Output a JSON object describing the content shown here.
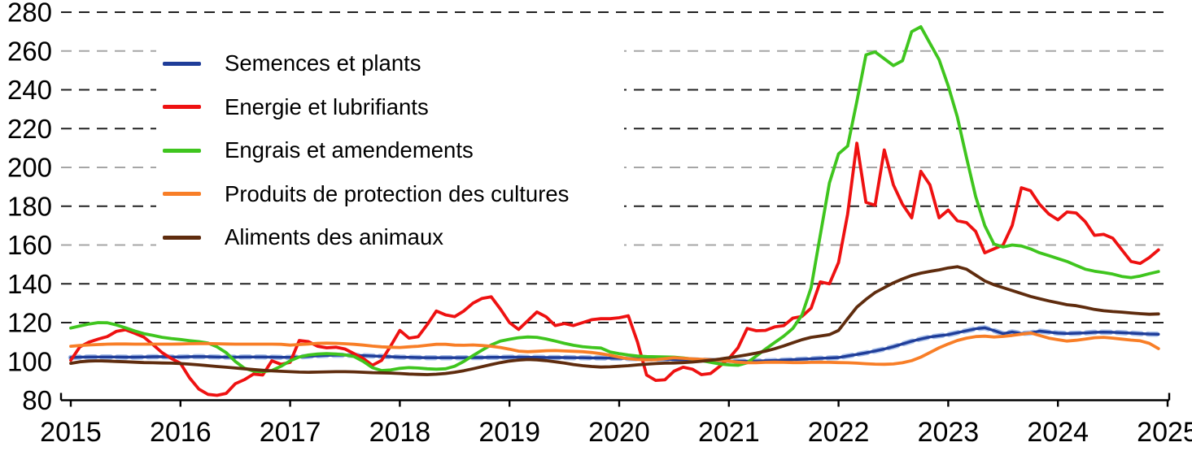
{
  "chart_data": {
    "type": "line",
    "title": "",
    "xlabel": "",
    "ylabel": "",
    "x_granularity": "monthly",
    "x_range": [
      "2015-01",
      "2024-12"
    ],
    "x_tick_labels": [
      "2015",
      "2016",
      "2017",
      "2018",
      "2019",
      "2020",
      "2021",
      "2022",
      "2023",
      "2024",
      "2025"
    ],
    "y_tick_labels": [
      "80",
      "100",
      "120",
      "140",
      "160",
      "180",
      "200",
      "220",
      "240",
      "260",
      "280"
    ],
    "ylim": [
      80,
      280
    ],
    "y_gridline_values": [
      120,
      140,
      160,
      180,
      200,
      220,
      240,
      260,
      280
    ],
    "gray_gridline_values": [
      160,
      200,
      260
    ],
    "grid": "dashed horizontal",
    "legend_position": "top-left",
    "series": [
      {
        "name": "Semences et plants",
        "color": "#1f3d99",
        "halo_color": "#a9c0ea",
        "values": [
          102.0,
          102.2,
          102.3,
          102.3,
          102.3,
          102.3,
          102.2,
          102.2,
          102.3,
          102.4,
          102.4,
          102.3,
          102.3,
          102.4,
          102.5,
          102.4,
          102.3,
          102.2,
          102.2,
          102.3,
          102.3,
          102.3,
          102.2,
          102.1,
          102.1,
          102.3,
          102.6,
          102.9,
          103.1,
          103.2,
          103.2,
          103.1,
          103.0,
          102.8,
          102.6,
          102.4,
          102.2,
          102.1,
          102.0,
          101.9,
          101.9,
          101.9,
          101.9,
          101.9,
          102.0,
          102.0,
          102.1,
          102.1,
          102.2,
          102.2,
          102.1,
          102.1,
          102.0,
          102.0,
          102.0,
          101.9,
          101.9,
          101.8,
          101.8,
          101.7,
          101.6,
          101.5,
          101.4,
          101.3,
          101.2,
          101.1,
          101.0,
          100.9,
          100.8,
          100.7,
          100.6,
          100.4,
          100.2,
          100.1,
          100.1,
          100.2,
          100.3,
          100.5,
          100.7,
          100.9,
          101.1,
          101.3,
          101.6,
          101.8,
          102.0,
          102.8,
          103.6,
          104.4,
          105.4,
          106.4,
          107.6,
          109.0,
          110.4,
          111.6,
          112.6,
          113.2,
          113.8,
          114.8,
          115.8,
          116.8,
          117.3,
          115.9,
          114.3,
          115.2,
          114.4,
          114.7,
          115.6,
          115.1,
          114.6,
          114.4,
          114.5,
          114.7,
          115.0,
          115.1,
          115.0,
          114.8,
          114.6,
          114.3,
          114.1,
          114.0
        ]
      },
      {
        "name": "Energie et lubrifiants",
        "color": "#ee1111",
        "values": [
          100.6,
          107.5,
          110.0,
          111.5,
          112.8,
          115.5,
          116.3,
          114.5,
          112.5,
          108.6,
          104.5,
          101.5,
          99.0,
          91.5,
          85.8,
          83.0,
          82.5,
          83.5,
          88.5,
          90.6,
          93.5,
          93.0,
          100.3,
          98.5,
          99.5,
          110.8,
          110.2,
          107.8,
          107.0,
          107.3,
          106.4,
          104.0,
          101.5,
          98.0,
          100.5,
          108.0,
          116.0,
          112.0,
          112.7,
          119.0,
          126.0,
          124.0,
          123.1,
          126.0,
          130.0,
          132.5,
          133.3,
          127.0,
          120.0,
          116.5,
          121.0,
          125.5,
          123.0,
          118.5,
          119.5,
          118.5,
          120.0,
          121.5,
          122.0,
          122.0,
          122.5,
          123.5,
          110.0,
          93.0,
          90.2,
          90.5,
          95.0,
          97.0,
          96.0,
          93.2,
          93.8,
          97.5,
          101.5,
          107.0,
          117.0,
          115.8,
          116.0,
          117.8,
          118.4,
          122.3,
          123.2,
          127.5,
          141.0,
          140.0,
          151.0,
          176.0,
          212.5,
          182.0,
          180.5,
          209.0,
          191.0,
          181.0,
          174.0,
          198.0,
          191.0,
          174.0,
          178.0,
          172.5,
          171.5,
          167.0,
          156.0,
          158.0,
          160.0,
          170.0,
          189.5,
          188.0,
          181.0,
          176.0,
          173.0,
          177.0,
          176.5,
          172.0,
          165.0,
          165.5,
          163.5,
          157.5,
          151.5,
          150.5,
          153.5,
          157.5
        ]
      },
      {
        "name": "Engrais et amendements",
        "color": "#3fc51e",
        "values": [
          117.2,
          118.3,
          119.3,
          120.0,
          119.9,
          118.8,
          117.3,
          115.7,
          114.3,
          113.4,
          112.4,
          111.8,
          111.3,
          110.7,
          110.2,
          109.5,
          107.5,
          104.5,
          100.0,
          96.5,
          95.0,
          94.7,
          95.3,
          97.5,
          100.3,
          102.3,
          103.3,
          103.8,
          104.0,
          103.8,
          103.4,
          102.5,
          100.0,
          96.8,
          95.3,
          95.6,
          96.4,
          96.8,
          96.6,
          96.2,
          96.0,
          96.2,
          97.5,
          100.0,
          103.0,
          105.8,
          108.5,
          110.5,
          111.4,
          112.2,
          112.6,
          112.4,
          111.6,
          110.5,
          109.3,
          108.3,
          107.6,
          107.2,
          106.9,
          104.9,
          104.0,
          103.3,
          102.8,
          102.5,
          102.4,
          102.3,
          102.2,
          101.8,
          101.2,
          100.4,
          99.5,
          98.7,
          98.2,
          98.0,
          99.3,
          102.8,
          106.3,
          109.7,
          113.0,
          117.0,
          124.0,
          138.0,
          165.0,
          192.0,
          207.0,
          211.0,
          234.0,
          258.0,
          259.5,
          256.0,
          252.5,
          255.0,
          270.0,
          272.5,
          264.0,
          255.5,
          242.0,
          226.0,
          205.0,
          185.0,
          170.0,
          160.5,
          159.0,
          160.0,
          159.5,
          158.0,
          156.0,
          154.5,
          153.0,
          151.5,
          149.5,
          147.5,
          146.5,
          145.8,
          145.0,
          143.8,
          143.2,
          144.0,
          145.2,
          146.3
        ]
      },
      {
        "name": "Produits de protection des cultures",
        "color": "#f87e27",
        "values": [
          107.8,
          108.2,
          108.5,
          108.7,
          108.9,
          109.0,
          109.0,
          108.9,
          108.9,
          108.9,
          108.9,
          108.9,
          109.0,
          109.1,
          109.2,
          109.2,
          109.1,
          109.0,
          108.9,
          108.9,
          108.9,
          108.9,
          108.9,
          108.8,
          108.4,
          108.7,
          109.0,
          109.3,
          109.4,
          109.3,
          109.1,
          108.8,
          108.4,
          107.9,
          107.5,
          107.3,
          107.2,
          107.5,
          107.8,
          108.3,
          108.8,
          108.8,
          108.4,
          108.3,
          108.5,
          108.2,
          107.8,
          107.2,
          106.3,
          105.3,
          105.0,
          105.2,
          105.5,
          105.6,
          105.4,
          105.2,
          105.0,
          104.6,
          104.0,
          103.2,
          102.2,
          101.4,
          101.0,
          100.8,
          100.9,
          101.4,
          101.9,
          101.6,
          101.3,
          101.1,
          100.9,
          100.6,
          100.1,
          99.6,
          99.3,
          99.3,
          99.5,
          99.6,
          99.5,
          99.4,
          99.4,
          99.5,
          99.6,
          99.5,
          99.4,
          99.3,
          99.1,
          98.8,
          98.6,
          98.5,
          98.7,
          99.3,
          100.4,
          102.2,
          104.6,
          107.0,
          109.0,
          110.8,
          112.0,
          112.8,
          113.0,
          112.6,
          112.9,
          113.4,
          114.0,
          114.7,
          113.4,
          112.0,
          111.2,
          110.5,
          110.9,
          111.5,
          112.2,
          112.4,
          112.0,
          111.5,
          111.0,
          110.6,
          109.3,
          106.6
        ]
      },
      {
        "name": "Aliments des animaux",
        "color": "#5f2c0e",
        "values": [
          99.0,
          99.8,
          100.2,
          100.3,
          100.2,
          100.0,
          99.8,
          99.6,
          99.4,
          99.3,
          99.2,
          99.1,
          98.9,
          98.6,
          98.2,
          97.8,
          97.4,
          97.0,
          96.6,
          96.2,
          95.8,
          95.4,
          95.1,
          94.9,
          94.7,
          94.5,
          94.4,
          94.5,
          94.6,
          94.7,
          94.7,
          94.6,
          94.4,
          94.2,
          94.1,
          94.0,
          93.8,
          93.5,
          93.3,
          93.2,
          93.4,
          93.8,
          94.4,
          95.2,
          96.2,
          97.3,
          98.4,
          99.4,
          100.2,
          100.7,
          101.0,
          100.8,
          100.4,
          99.8,
          99.2,
          98.4,
          97.8,
          97.4,
          97.1,
          97.2,
          97.5,
          97.8,
          98.2,
          98.6,
          98.9,
          99.1,
          99.2,
          99.4,
          99.7,
          100.1,
          100.6,
          101.2,
          101.9,
          102.6,
          103.4,
          104.3,
          105.3,
          106.5,
          108.0,
          109.6,
          111.2,
          112.4,
          113.1,
          113.8,
          116.0,
          122.0,
          128.0,
          132.0,
          135.5,
          138.0,
          140.5,
          142.5,
          144.3,
          145.5,
          146.4,
          147.2,
          148.2,
          148.8,
          147.5,
          144.5,
          141.5,
          139.5,
          138.0,
          136.5,
          135.0,
          133.5,
          132.3,
          131.2,
          130.2,
          129.2,
          128.7,
          127.8,
          126.8,
          126.1,
          125.7,
          125.4,
          125.0,
          124.6,
          124.3,
          124.5
        ]
      }
    ]
  }
}
